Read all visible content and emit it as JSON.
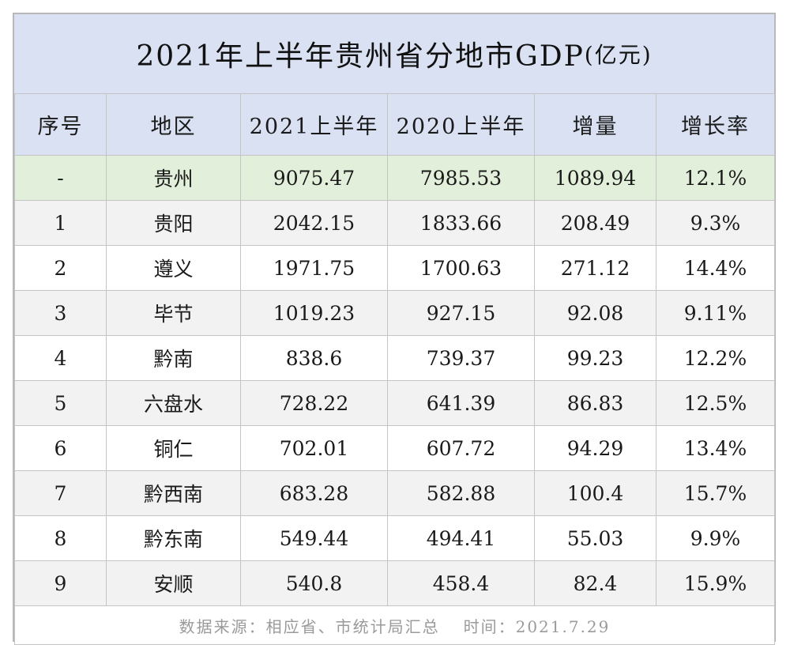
{
  "colors": {
    "header_bg": "#d9e1f2",
    "total_row_bg": "#e2efda",
    "stripe_bg": "#f2f2f2",
    "border": "#c4c4c4"
  },
  "chart_data": {
    "type": "table",
    "title": "2021年上半年贵州省分地市GDP",
    "title_unit": "(亿元)",
    "columns": [
      "序号",
      "地区",
      "2021上半年",
      "2020上半年",
      "增量",
      "增长率"
    ],
    "rows": [
      [
        "-",
        "贵州",
        "9075.47",
        "7985.53",
        "1089.94",
        "12.1%"
      ],
      [
        "1",
        "贵阳",
        "2042.15",
        "1833.66",
        "208.49",
        "9.3%"
      ],
      [
        "2",
        "遵义",
        "1971.75",
        "1700.63",
        "271.12",
        "14.4%"
      ],
      [
        "3",
        "毕节",
        "1019.23",
        "927.15",
        "92.08",
        "9.11%"
      ],
      [
        "4",
        "黔南",
        "838.6",
        "739.37",
        "99.23",
        "12.2%"
      ],
      [
        "5",
        "六盘水",
        "728.22",
        "641.39",
        "86.83",
        "12.5%"
      ],
      [
        "6",
        "铜仁",
        "702.01",
        "607.72",
        "94.29",
        "13.4%"
      ],
      [
        "7",
        "黔西南",
        "683.28",
        "582.88",
        "100.4",
        "15.7%"
      ],
      [
        "8",
        "黔东南",
        "549.44",
        "494.41",
        "55.03",
        "9.9%"
      ],
      [
        "9",
        "安顺",
        "540.8",
        "458.4",
        "82.4",
        "15.9%"
      ]
    ],
    "source": "数据来源：相应省、市统计局汇总",
    "time": "时间：2021.7.29"
  }
}
